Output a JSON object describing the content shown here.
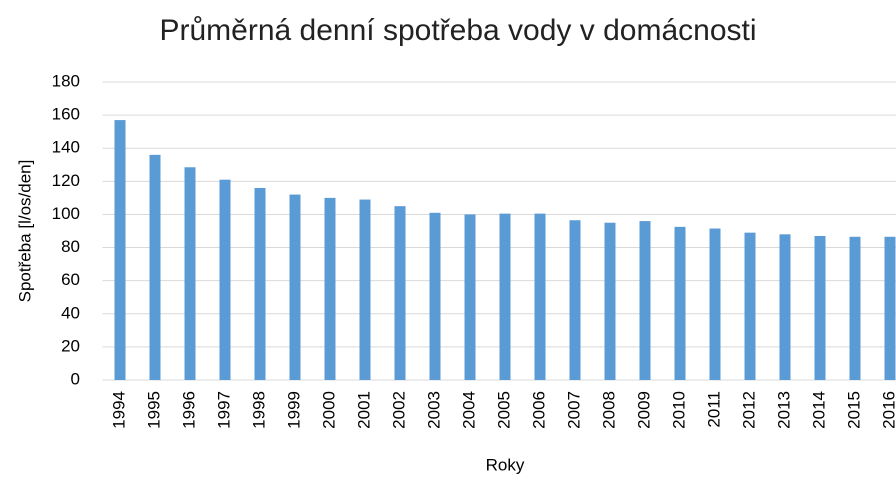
{
  "chart_data": {
    "type": "bar",
    "title": "Průměrná denní spotřeba vody v domácnosti",
    "xlabel": "Roky",
    "ylabel": "Spotřeba [l/os/den]",
    "categories": [
      "1994",
      "1995",
      "1996",
      "1997",
      "1998",
      "1999",
      "2000",
      "2001",
      "2002",
      "2003",
      "2004",
      "2005",
      "2006",
      "2007",
      "2008",
      "2009",
      "2010",
      "2011",
      "2012",
      "2013",
      "2014",
      "2015",
      "2016"
    ],
    "values": [
      157,
      136,
      128.5,
      121,
      116,
      112,
      110,
      109,
      105,
      101,
      100,
      100.5,
      100.5,
      96.5,
      95,
      96,
      92.5,
      91.5,
      89,
      88,
      87,
      86.5,
      86.5
    ],
    "color": "#5b9bd5",
    "ylim": [
      0,
      180
    ],
    "yticks": [
      0,
      20,
      40,
      60,
      80,
      100,
      120,
      140,
      160,
      180
    ],
    "grid": true
  }
}
